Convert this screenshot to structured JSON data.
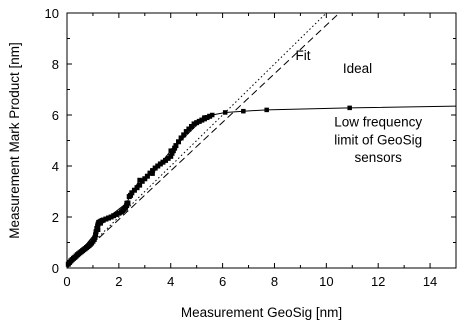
{
  "chart_data": {
    "type": "scatter",
    "title": "",
    "xlabel": "Measurement GeoSig [nm]",
    "ylabel": "Measurement Mark Product [nm]",
    "xlim": [
      0,
      15
    ],
    "ylim": [
      0,
      10
    ],
    "xticks": [
      "0",
      "2",
      "4",
      "6",
      "8",
      "10",
      "12",
      "14"
    ],
    "yticks": [
      "0",
      "2",
      "4",
      "6",
      "8",
      "10"
    ],
    "grid": false,
    "legend": "none",
    "series": [
      {
        "name": "Fit",
        "style": "dashed",
        "x": [
          0,
          10.5
        ],
        "y": [
          0,
          10
        ]
      },
      {
        "name": "Ideal",
        "style": "dotted",
        "x": [
          0,
          10
        ],
        "y": [
          0,
          10
        ]
      },
      {
        "name": "",
        "style": "markers",
        "x": [
          0.05,
          0.1,
          0.15,
          0.2,
          0.25,
          0.3,
          0.35,
          0.4,
          0.45,
          0.5,
          0.55,
          0.6,
          0.65,
          0.7,
          0.75,
          0.8,
          0.85,
          0.9,
          0.95,
          1.0,
          1.05,
          1.08,
          1.1,
          1.12,
          1.15,
          1.18,
          1.2,
          1.22,
          1.25,
          1.3,
          1.35,
          1.4,
          1.5,
          1.6,
          1.7,
          1.8,
          1.9,
          2.0,
          2.1,
          2.15,
          2.2,
          2.25,
          2.3,
          2.35,
          2.4,
          2.45,
          2.5,
          2.6,
          2.7,
          2.8,
          2.9,
          3.0,
          3.1,
          3.2,
          3.3,
          3.4,
          3.5,
          3.6,
          3.7,
          3.8,
          3.9,
          4.0,
          4.05,
          4.1,
          4.15,
          4.2,
          4.3,
          4.4,
          4.5,
          4.6,
          4.7,
          4.8,
          4.9,
          5.0,
          5.1,
          5.2,
          5.3,
          5.4,
          5.5
        ],
        "y": [
          0.15,
          0.22,
          0.28,
          0.33,
          0.38,
          0.42,
          0.47,
          0.52,
          0.56,
          0.6,
          0.64,
          0.68,
          0.72,
          0.76,
          0.8,
          0.84,
          0.88,
          0.93,
          0.98,
          1.05,
          1.12,
          1.2,
          1.3,
          1.42,
          1.55,
          1.65,
          1.72,
          1.78,
          1.8,
          1.83,
          1.86,
          1.88,
          1.92,
          1.96,
          2.0,
          2.05,
          2.1,
          2.15,
          2.2,
          2.25,
          2.3,
          2.35,
          2.45,
          2.55,
          2.8,
          2.85,
          2.95,
          3.05,
          3.15,
          3.25,
          3.4,
          3.5,
          3.6,
          3.72,
          3.82,
          3.92,
          4.0,
          4.08,
          4.15,
          4.22,
          4.3,
          4.38,
          4.5,
          4.6,
          4.7,
          4.8,
          4.95,
          5.1,
          5.22,
          5.35,
          5.45,
          5.55,
          5.65,
          5.7,
          5.75,
          5.8,
          5.85,
          5.9,
          5.95
        ]
      },
      {
        "name": "",
        "style": "line-markers",
        "x": [
          0,
          1.2,
          1.3,
          2.3,
          2.45,
          2.8,
          3.3,
          4.0,
          5.3,
          5.6,
          6.1,
          6.8,
          7.7,
          10.9,
          15
        ],
        "y": [
          0,
          1.5,
          1.75,
          2.55,
          2.85,
          3.45,
          3.7,
          4.6,
          5.9,
          6.0,
          6.1,
          6.15,
          6.2,
          6.28,
          6.35
        ]
      }
    ],
    "annotations": [
      {
        "text": "Fit",
        "x": 9.1,
        "y": 8.15
      },
      {
        "text": "Ideal",
        "x": 11.2,
        "y": 7.65
      },
      {
        "text": "Low frequency",
        "x": 12.0,
        "y": 5.55
      },
      {
        "text": "limit of GeoSig",
        "x": 12.0,
        "y": 4.85
      },
      {
        "text": "sensors",
        "x": 12.0,
        "y": 4.15
      }
    ]
  }
}
